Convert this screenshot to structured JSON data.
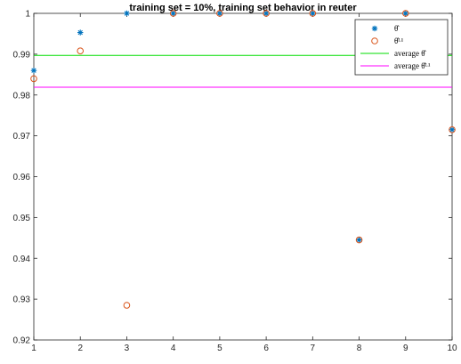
{
  "chart_data": {
    "type": "scatter",
    "title": "training set = 10%, training set behavior in reuter",
    "xlim": [
      1,
      10
    ],
    "ylim": [
      0.92,
      1.0
    ],
    "xticks": [
      1,
      2,
      3,
      4,
      5,
      6,
      7,
      8,
      9,
      10
    ],
    "yticks": [
      0.92,
      0.93,
      0.94,
      0.95,
      0.96,
      0.97,
      0.98,
      0.99,
      1
    ],
    "ytick_labels": [
      "0.92",
      "0.93",
      "0.94",
      "0.95",
      "0.96",
      "0.97",
      "0.98",
      "0.99",
      "1"
    ],
    "grid": false,
    "legend_position": "top-right",
    "series": [
      {
        "name": "θ̂",
        "marker": "asterisk",
        "color": "#0072BD",
        "x": [
          1,
          2,
          3,
          4,
          5,
          6,
          7,
          8,
          9,
          10
        ],
        "y": [
          0.986,
          0.9953,
          1.0,
          1.0,
          1.0,
          1.0,
          1.0,
          0.9445,
          1.0,
          0.9715
        ]
      },
      {
        "name": "θ̂ᴸ¹",
        "marker": "circle",
        "color": "#D95319",
        "x": [
          1,
          2,
          3,
          4,
          5,
          6,
          7,
          8,
          9,
          10
        ],
        "y": [
          0.984,
          0.9908,
          0.9285,
          1.0,
          1.0,
          1.0,
          1.0,
          0.9445,
          1.0,
          0.9715
        ]
      }
    ],
    "reference_lines": [
      {
        "name": "average θ̂",
        "y": 0.9897,
        "color": "#00DD00"
      },
      {
        "name": "average θ̂ᴸ¹",
        "y": 0.9819,
        "color": "#FF00FF"
      }
    ]
  }
}
